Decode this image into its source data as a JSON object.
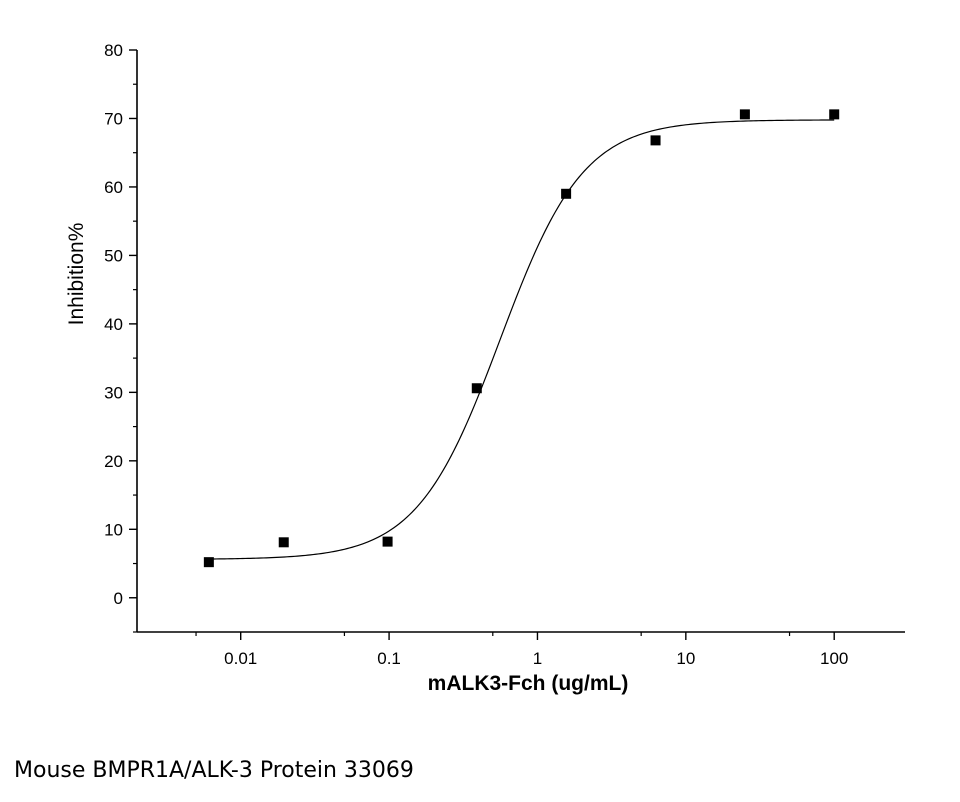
{
  "caption": "Mouse BMPR1A/ALK-3 Protein 33069",
  "chart_data": {
    "type": "scatter",
    "title": "",
    "xlabel": "mALK3-Fch (ug/mL)",
    "ylabel": "Inhibition%",
    "x_scale": "log",
    "xlim": [
      0.002,
      300
    ],
    "ylim": [
      -5,
      80
    ],
    "x_ticks": [
      0.01,
      0.1,
      1,
      10,
      100
    ],
    "x_tick_labels": [
      "0.01",
      "0.1",
      "1",
      "10",
      "100"
    ],
    "y_ticks": [
      0,
      10,
      20,
      30,
      40,
      50,
      60,
      70,
      80
    ],
    "y_tick_labels": [
      "0",
      "10",
      "20",
      "30",
      "40",
      "50",
      "60",
      "70",
      "80"
    ],
    "grid": false,
    "legend": "none",
    "series": [
      {
        "marker": "square",
        "color": "#000000",
        "x": [
          0.0061,
          0.0195,
          0.0977,
          0.39,
          1.56,
          6.25,
          25,
          100
        ],
        "y": [
          5.2,
          8.1,
          8.2,
          30.6,
          59.0,
          66.8,
          70.6,
          70.6
        ]
      }
    ],
    "fit_curve": {
      "model": "4PL",
      "bottom": 5.6,
      "top": 69.8,
      "ec50": 0.56,
      "hill": 1.55,
      "color": "#000000"
    }
  }
}
